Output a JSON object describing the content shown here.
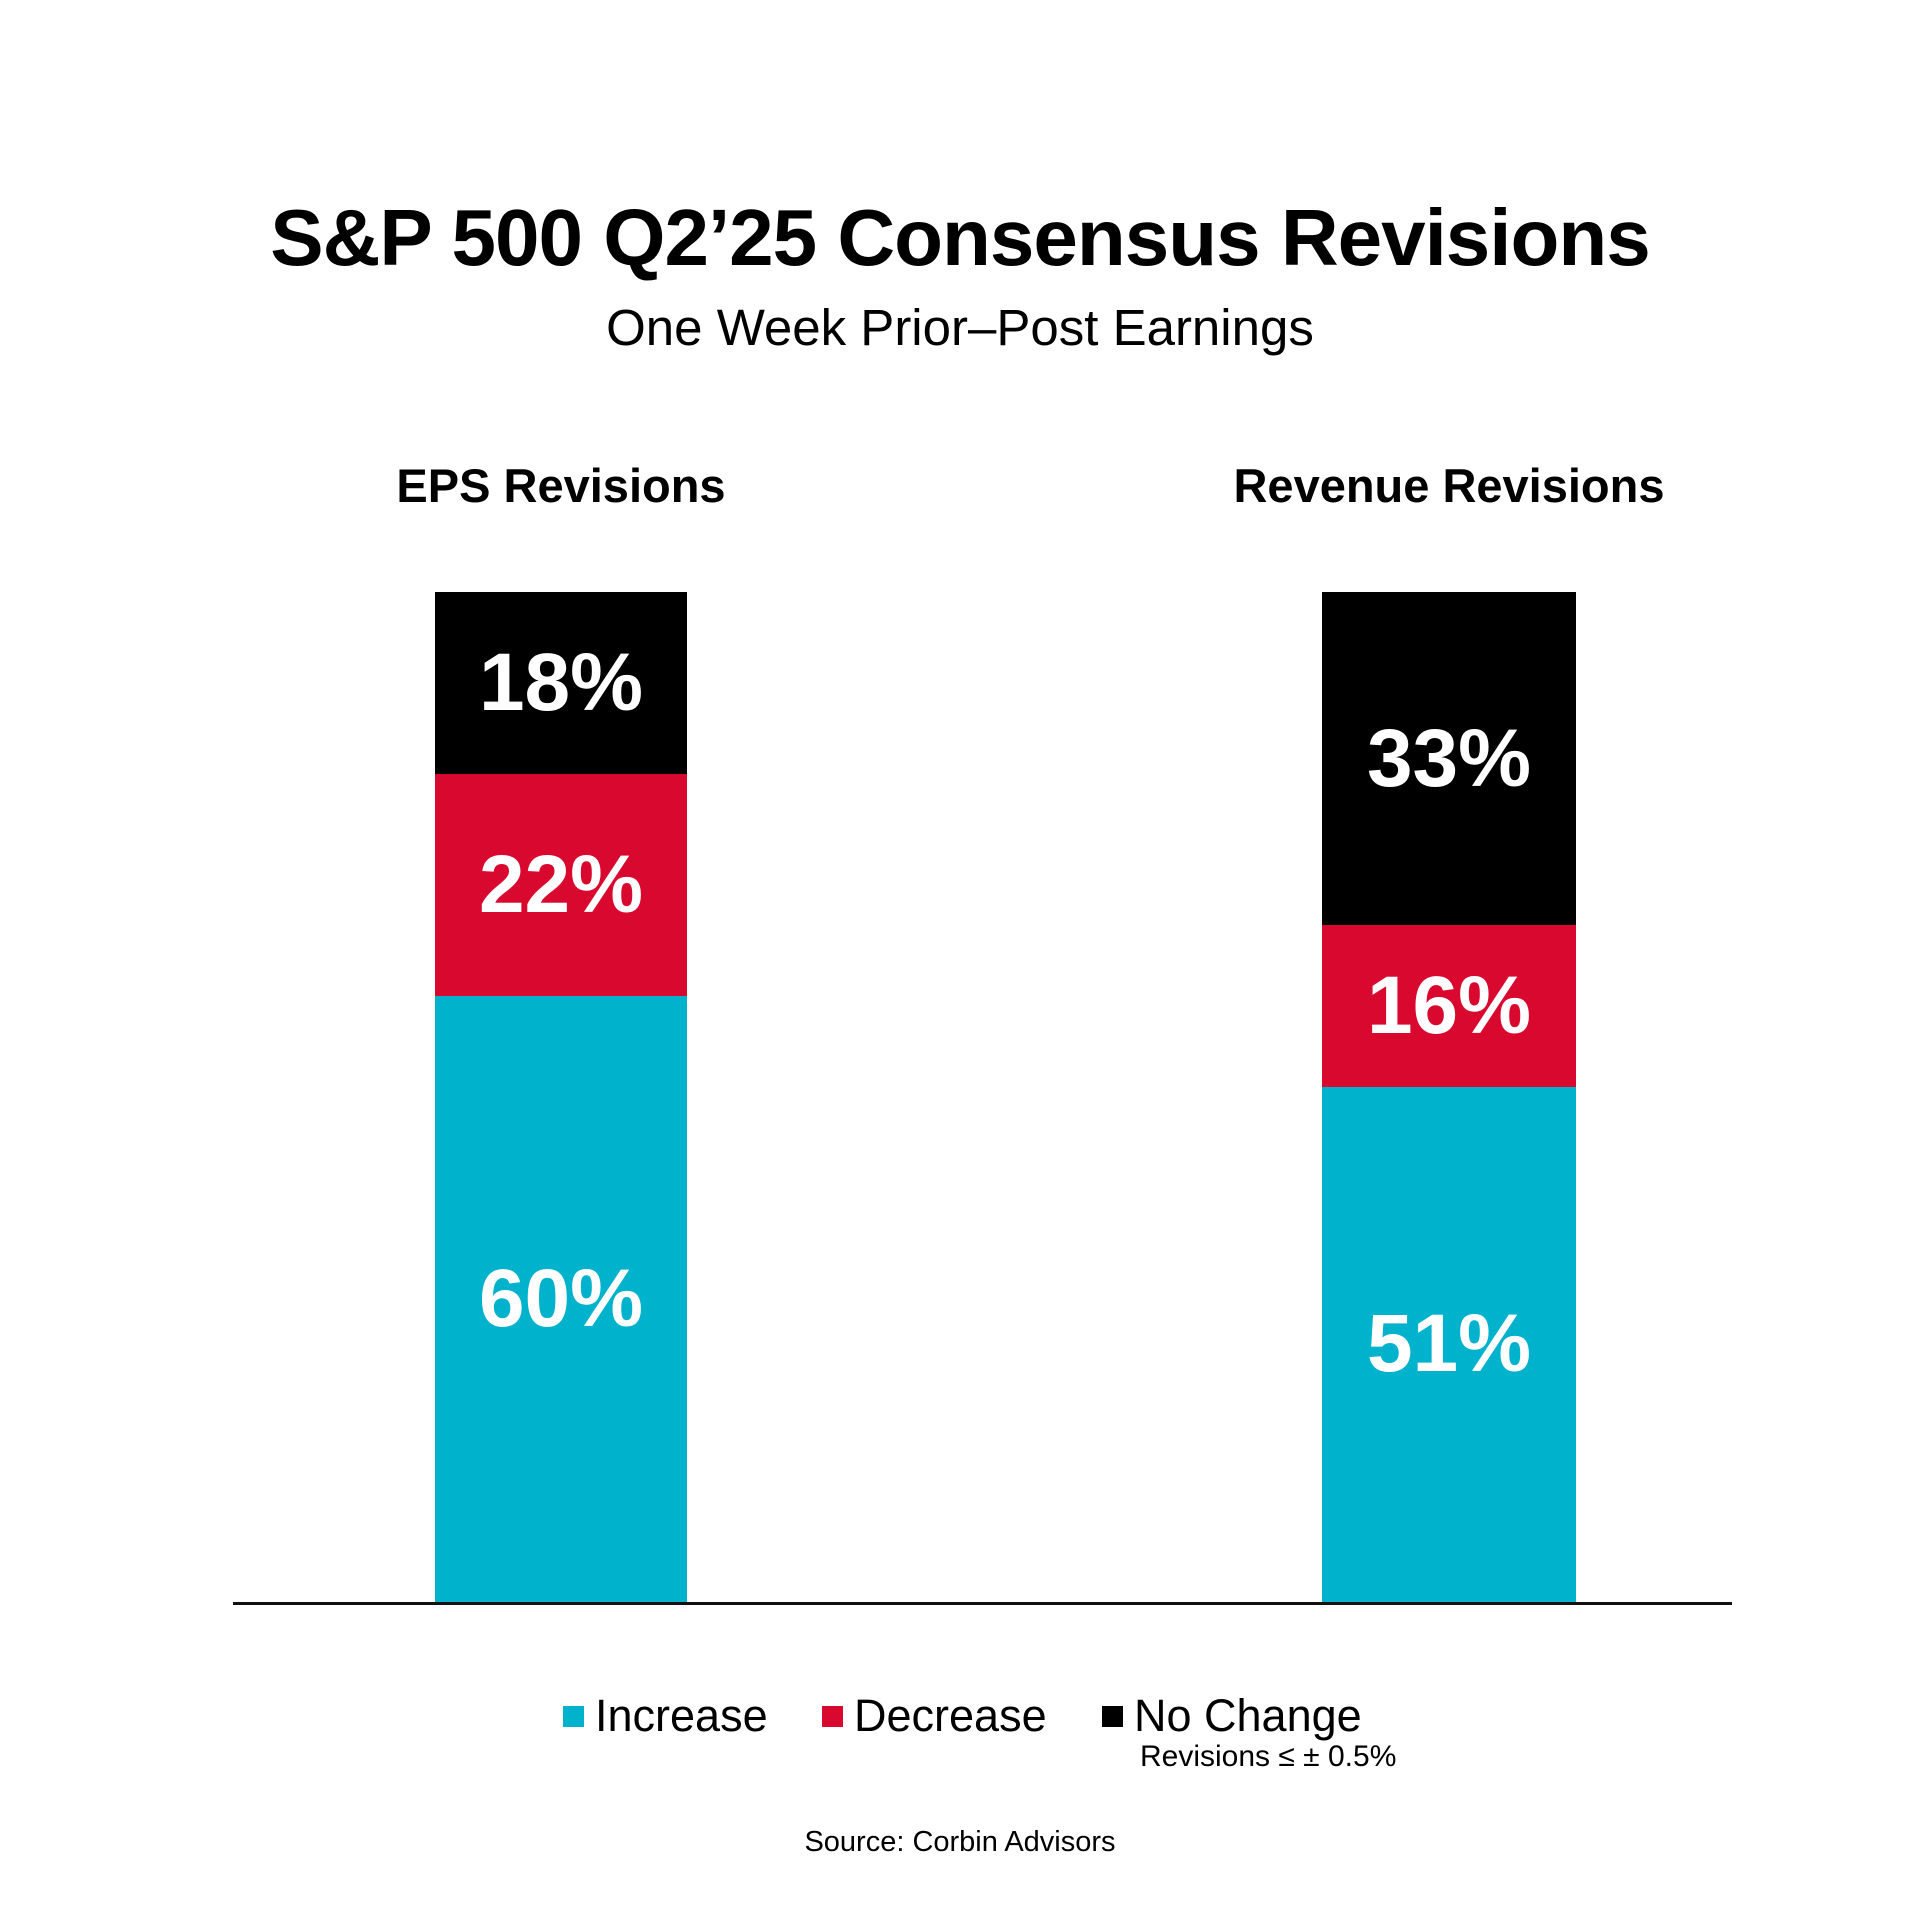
{
  "header": {
    "title": "S&P 500 Q2’25 Consensus Revisions",
    "subtitle": "One Week Prior–Post Earnings"
  },
  "chart_data": {
    "type": "bar",
    "subtype": "stacked-100",
    "categories": [
      "EPS Revisions",
      "Revenue Revisions"
    ],
    "series": [
      {
        "name": "Increase",
        "color": "#00B2CB",
        "values": [
          60,
          51
        ]
      },
      {
        "name": "Decrease",
        "color": "#D9082F",
        "values": [
          22,
          16
        ]
      },
      {
        "name": "No Change",
        "color": "#000000",
        "values": [
          18,
          33
        ]
      }
    ],
    "stack_order_top_to_bottom": [
      "No Change",
      "Decrease",
      "Increase"
    ],
    "value_suffix": "%",
    "ylim": [
      0,
      100
    ],
    "grid": false,
    "legend_position": "bottom",
    "legend_note": "Revisions ≤ ± 0.5%",
    "source": "Source: Corbin Advisors",
    "data_label_color": "#ffffff"
  }
}
